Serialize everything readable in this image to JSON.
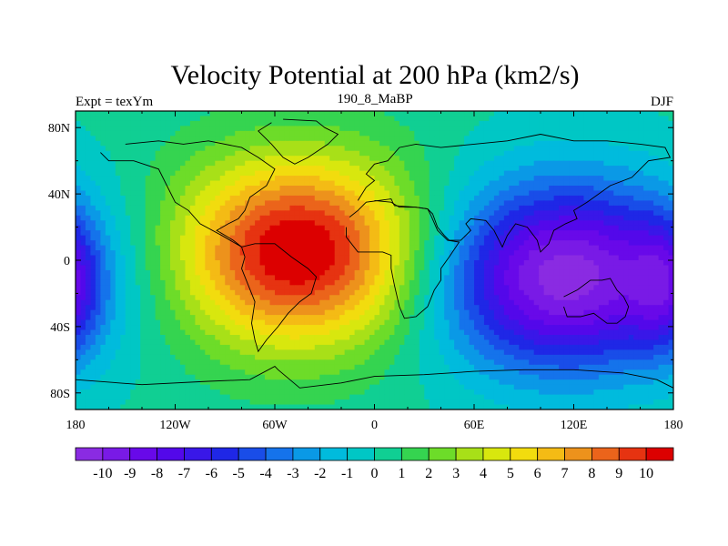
{
  "chart_data": {
    "type": "heatmap",
    "title": "Velocity Potential at 200 hPa (km2/s)",
    "left_subtitle": "Expt = texYm",
    "center_subtitle": "190_8_MaBP",
    "right_subtitle": "DJF",
    "x_tick_labels": [
      "180",
      "120W",
      "60W",
      "0",
      "60E",
      "120E",
      "180"
    ],
    "x_tick_values": [
      -180,
      -120,
      -60,
      0,
      60,
      120,
      180
    ],
    "y_tick_labels": [
      "80N",
      "40N",
      "0",
      "40S",
      "80S"
    ],
    "y_tick_values": [
      80,
      40,
      0,
      -40,
      -80
    ],
    "xlim": [
      -180,
      180
    ],
    "ylim": [
      -90,
      90
    ],
    "colorbar_labels": [
      "-10",
      "-9",
      "-8",
      "-7",
      "-6",
      "-5",
      "-4",
      "-3",
      "-2",
      "-1",
      "0",
      "1",
      "2",
      "3",
      "4",
      "5",
      "6",
      "7",
      "8",
      "9",
      "10"
    ],
    "colorbar_values": [
      -10,
      -9,
      -8,
      -7,
      -6,
      -5,
      -4,
      -3,
      -2,
      -1,
      0,
      1,
      2,
      3,
      4,
      5,
      6,
      7,
      8,
      9,
      10
    ],
    "field_centers": [
      {
        "lon": -45,
        "lat": 5,
        "value": 11
      },
      {
        "lon": 115,
        "lat": -10,
        "value": -11
      },
      {
        "lon": 175,
        "lat": -15,
        "value": -4
      }
    ]
  }
}
